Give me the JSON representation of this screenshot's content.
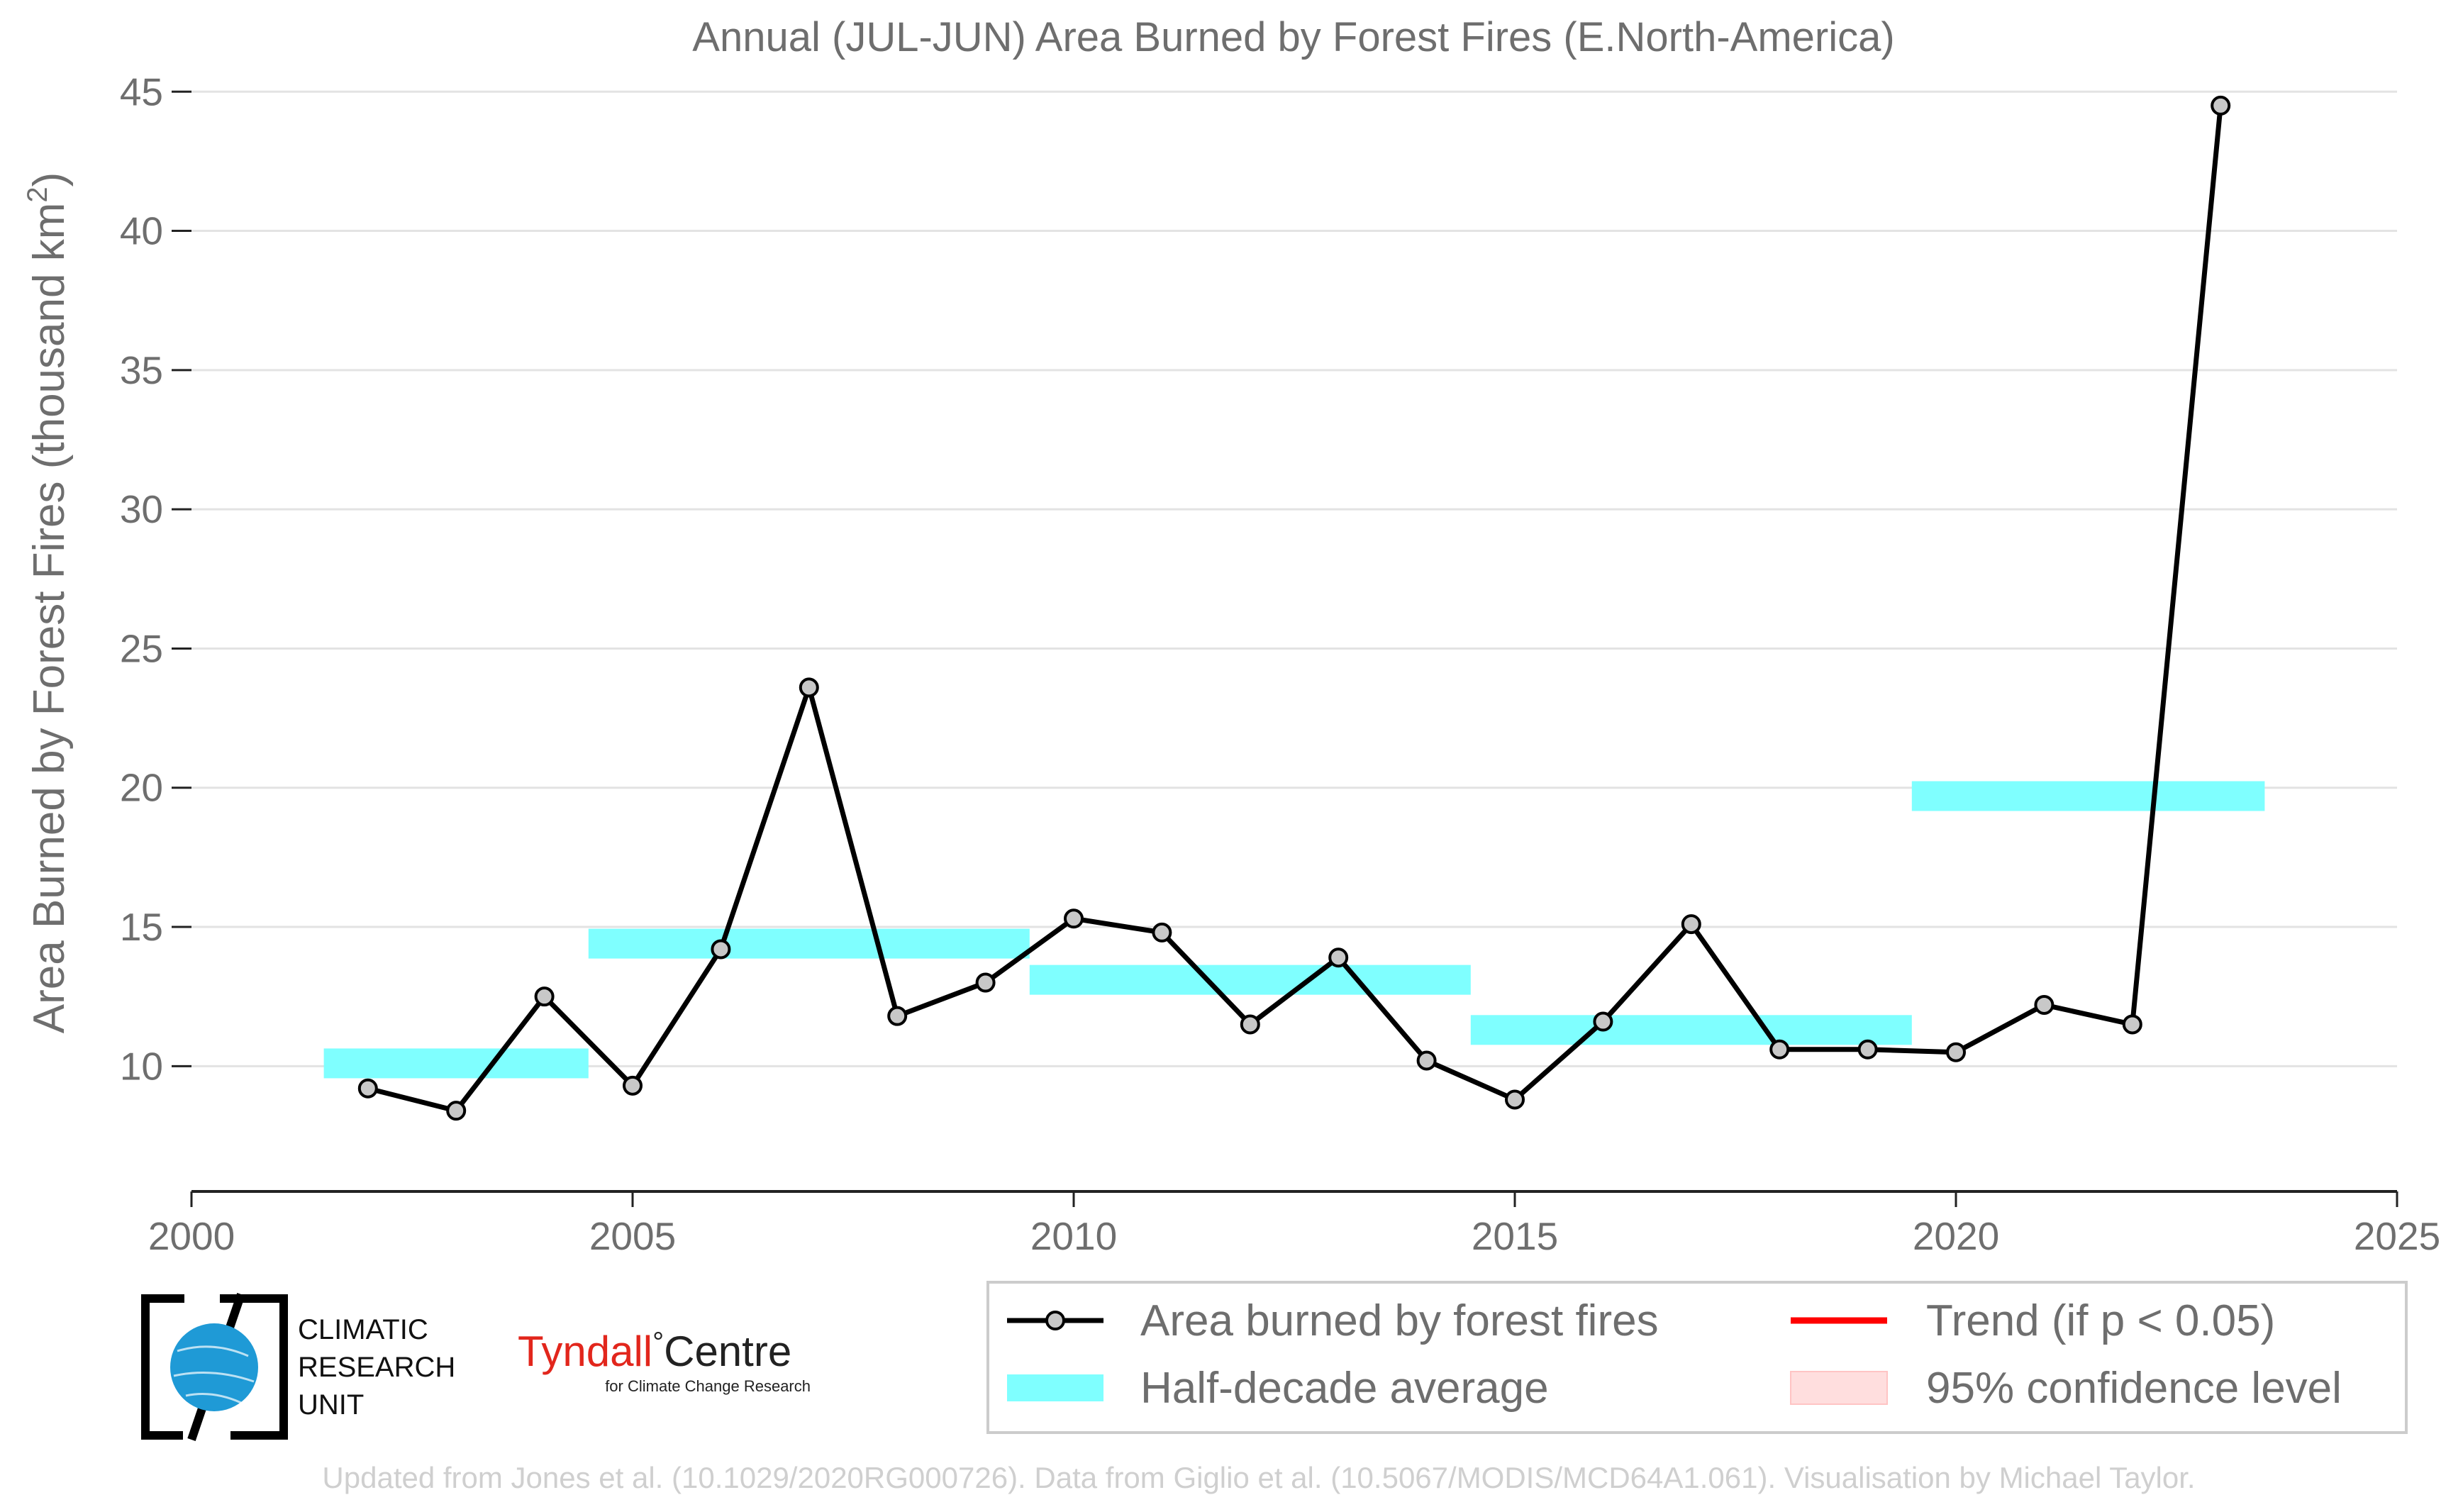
{
  "chart_data": {
    "type": "line",
    "title": "Annual (JUL-JUN) Area Burned by Forest Fires (E.North-America)",
    "ylabel": "Area Burned by Forest Fires (thousand km",
    "ylabel_sup": "2",
    "ylabel_close": ")",
    "xlabel": "",
    "xlim": [
      2000,
      2025
    ],
    "ylim": [
      5.5,
      46
    ],
    "xticks": [
      2000,
      2005,
      2010,
      2015,
      2020,
      2025
    ],
    "yticks": [
      10,
      15,
      20,
      25,
      30,
      35,
      40,
      45
    ],
    "grid": "horizontal",
    "series": [
      {
        "name": "Area burned by forest fires",
        "color": "#000000",
        "marker_color": "#c8c8c8",
        "x": [
          2002,
          2003,
          2004,
          2005,
          2006,
          2007,
          2008,
          2009,
          2010,
          2011,
          2012,
          2013,
          2014,
          2015,
          2016,
          2017,
          2018,
          2019,
          2020,
          2021,
          2022,
          2023
        ],
        "y": [
          9.2,
          8.4,
          12.5,
          9.3,
          14.2,
          23.6,
          11.8,
          13.0,
          15.3,
          14.8,
          11.5,
          13.9,
          10.2,
          8.8,
          11.6,
          15.1,
          10.6,
          10.6,
          10.5,
          12.2,
          11.5,
          44.5
        ]
      }
    ],
    "half_decade_averages": {
      "name": "Half-decade average",
      "color": "#7fffff",
      "bars": [
        {
          "x_start": 2001.5,
          "x_end": 2004.5,
          "value": 10.1
        },
        {
          "x_start": 2004.5,
          "x_end": 2009.5,
          "value": 14.4
        },
        {
          "x_start": 2009.5,
          "x_end": 2014.5,
          "value": 13.1
        },
        {
          "x_start": 2014.5,
          "x_end": 2019.5,
          "value": 11.3
        },
        {
          "x_start": 2019.5,
          "x_end": 2023.5,
          "value": 19.7
        }
      ]
    },
    "legend": {
      "placement": "bottom-right",
      "entries": [
        {
          "label": "Area burned by forest fires",
          "symbol": "line-marker",
          "color": "#000000"
        },
        {
          "label": "Trend (if p < 0.05)",
          "symbol": "line",
          "color": "#ff0000"
        },
        {
          "label": "Half-decade average",
          "symbol": "band",
          "color": "#7fffff"
        },
        {
          "label": "95% confidence level",
          "symbol": "patch",
          "color": "#ffdede"
        }
      ]
    }
  },
  "logos": {
    "cru_lines": [
      "CLIMATIC",
      "RESEARCH",
      "UNIT"
    ],
    "tyndall_red": "Tyndall",
    "tyndall_degree": "°",
    "tyndall_black": "Centre",
    "tyndall_sub": "for Climate Change Research",
    "tyndall_color": "#e2261c"
  },
  "credit": "Updated from Jones et al. (10.1029/2020RG000726). Data from Giglio et al. (10.5067/MODIS/MCD64A1.061). Visualisation by Michael Taylor."
}
